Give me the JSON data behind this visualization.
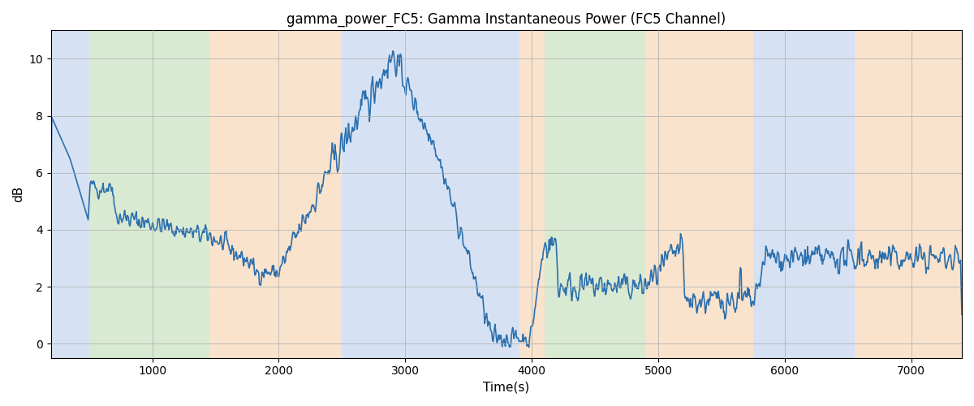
{
  "title": "gamma_power_FC5: Gamma Instantaneous Power (FC5 Channel)",
  "xlabel": "Time(s)",
  "ylabel": "dB",
  "ylim": [
    -0.5,
    11
  ],
  "xlim": [
    200,
    7400
  ],
  "line_color": "#2c6fad",
  "line_width": 1.2,
  "background_color": "#ffffff",
  "grid_color": "#b0b0b0",
  "bands": [
    {
      "xmin": 200,
      "xmax": 500,
      "color": "#aec6e8",
      "alpha": 0.5
    },
    {
      "xmin": 500,
      "xmax": 1450,
      "color": "#b5d6a7",
      "alpha": 0.5
    },
    {
      "xmin": 1450,
      "xmax": 2500,
      "color": "#f5c99a",
      "alpha": 0.5
    },
    {
      "xmin": 2500,
      "xmax": 3900,
      "color": "#aec6e8",
      "alpha": 0.5
    },
    {
      "xmin": 3900,
      "xmax": 4100,
      "color": "#f5c99a",
      "alpha": 0.5
    },
    {
      "xmin": 4100,
      "xmax": 4900,
      "color": "#b5d6a7",
      "alpha": 0.5
    },
    {
      "xmin": 4900,
      "xmax": 5750,
      "color": "#f5c99a",
      "alpha": 0.5
    },
    {
      "xmin": 5750,
      "xmax": 6550,
      "color": "#aec6e8",
      "alpha": 0.5
    },
    {
      "xmin": 6550,
      "xmax": 6800,
      "color": "#f5c99a",
      "alpha": 0.5
    },
    {
      "xmin": 6800,
      "xmax": 7400,
      "color": "#f5c99a",
      "alpha": 0.5
    }
  ],
  "seed": 42,
  "yticks": [
    0,
    2,
    4,
    6,
    8,
    10
  ],
  "xticks": [
    1000,
    2000,
    3000,
    4000,
    5000,
    6000,
    7000
  ]
}
